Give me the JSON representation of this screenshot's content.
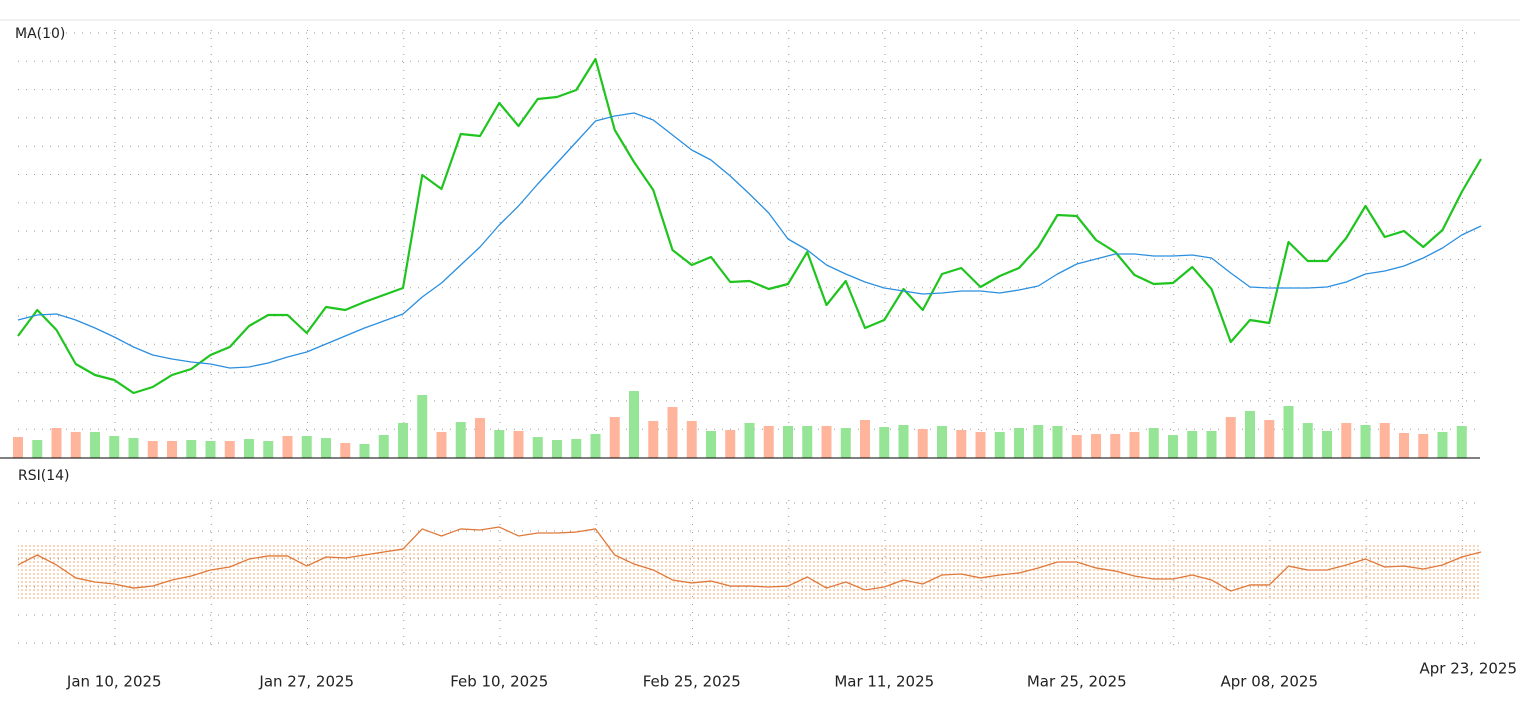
{
  "chart_data": [
    {
      "type": "line",
      "title": "MA(10)",
      "ylim": [
        0,
        440
      ],
      "series": [
        {
          "color": "#1fc41f",
          "values": [
            122,
            148,
            128,
            94,
            83,
            78,
            65,
            71,
            83,
            89,
            103,
            111,
            132,
            143,
            143,
            125,
            151,
            148,
            156,
            163,
            170,
            283,
            269,
            324,
            322,
            355,
            332,
            359,
            361,
            368,
            399,
            328,
            296,
            268,
            208,
            193,
            201,
            176,
            177,
            169,
            174,
            206,
            153,
            177,
            130,
            138,
            169,
            148,
            184,
            190,
            171,
            182,
            190,
            211,
            243,
            242,
            218,
            206,
            183,
            174,
            175,
            191,
            169,
            116,
            138,
            135,
            216,
            197,
            197,
            220,
            252,
            221,
            227,
            211,
            228,
            266,
            299
          ]
        },
        {
          "color": "#2b8fe0",
          "values": [
            138,
            143,
            144,
            138,
            130,
            121,
            111,
            103,
            99,
            96,
            94,
            90,
            91,
            95,
            101,
            106,
            114,
            122,
            130,
            137,
            144,
            161,
            175,
            193,
            211,
            233,
            252,
            274,
            295,
            316,
            337,
            342,
            345,
            338,
            323,
            308,
            298,
            282,
            264,
            245,
            219,
            208,
            193,
            184,
            176,
            170,
            167,
            164,
            165,
            167,
            167,
            165,
            168,
            172,
            184,
            194,
            199,
            204,
            204,
            202,
            202,
            203,
            200,
            185,
            171,
            170,
            170,
            170,
            171,
            176,
            184,
            187,
            192,
            200,
            210,
            223,
            232
          ]
        }
      ]
    },
    {
      "type": "bar",
      "ylim": [
        0,
        440
      ],
      "values": [
        21,
        18,
        30,
        26,
        26,
        22,
        20,
        17,
        17,
        18,
        17,
        17,
        19,
        17,
        22,
        22,
        20,
        15,
        14,
        23,
        35,
        63,
        26,
        36,
        40,
        28,
        27,
        21,
        18,
        19,
        24,
        41,
        67,
        37,
        51,
        37,
        27,
        28,
        35,
        32,
        32,
        32,
        32,
        30,
        38,
        31,
        33,
        29,
        32,
        28,
        26,
        26,
        30,
        33,
        32,
        23,
        24,
        24,
        26,
        30,
        23,
        27,
        27,
        41,
        47,
        38,
        52,
        35,
        27,
        35,
        33,
        35,
        25,
        24,
        26,
        32,
        null
      ],
      "colors": [
        "#ffb59b",
        "#96e596",
        "#ffb59b",
        "#ffb59b",
        "#96e596",
        "#96e596",
        "#96e596",
        "#ffb59b",
        "#ffb59b",
        "#96e596",
        "#96e596",
        "#ffb59b",
        "#96e596",
        "#96e596",
        "#ffb59b",
        "#96e596",
        "#96e596",
        "#ffb59b",
        "#96e596",
        "#96e596",
        "#96e596",
        "#96e596",
        "#ffb59b",
        "#96e596",
        "#ffb59b",
        "#96e596",
        "#ffb59b",
        "#96e596",
        "#96e596",
        "#96e596",
        "#96e596",
        "#ffb59b",
        "#96e596",
        "#ffb59b",
        "#ffb59b",
        "#ffb59b",
        "#96e596",
        "#ffb59b",
        "#96e596",
        "#ffb59b",
        "#96e596",
        "#96e596",
        "#ffb59b",
        "#96e596",
        "#ffb59b",
        "#96e596",
        "#96e596",
        "#ffb59b",
        "#96e596",
        "#ffb59b",
        "#ffb59b",
        "#96e596",
        "#96e596",
        "#96e596",
        "#96e596",
        "#ffb59b",
        "#ffb59b",
        "#ffb59b",
        "#ffb59b",
        "#96e596",
        "#96e596",
        "#96e596",
        "#96e596",
        "#ffb59b",
        "#96e596",
        "#ffb59b",
        "#96e596",
        "#96e596",
        "#96e596",
        "#ffb59b",
        "#96e596",
        "#ffb59b",
        "#ffb59b",
        "#ffb59b",
        "#96e596",
        "#96e596",
        null
      ]
    },
    {
      "type": "line",
      "title": "RSI(14)",
      "ylim": [
        0,
        100
      ],
      "band": [
        30,
        70
      ],
      "band_color": "#f4a46a",
      "categories": [
        null,
        null,
        null,
        null,
        null,
        "Jan 10, 2025",
        null,
        null,
        null,
        null,
        null,
        null,
        null,
        null,
        null,
        "Jan 27, 2025",
        null,
        null,
        null,
        null,
        null,
        null,
        null,
        null,
        null,
        "Feb 10, 2025",
        null,
        null,
        null,
        null,
        null,
        null,
        null,
        null,
        null,
        "Feb 25, 2025",
        null,
        null,
        null,
        null,
        null,
        null,
        null,
        null,
        null,
        "Mar 11, 2025",
        null,
        null,
        null,
        null,
        null,
        null,
        null,
        null,
        null,
        "Mar 25, 2025",
        null,
        null,
        null,
        null,
        null,
        null,
        null,
        null,
        null,
        "Apr 08, 2025",
        null,
        null,
        null,
        null,
        null,
        null,
        null,
        null,
        null,
        null,
        "Apr 23, 2025"
      ],
      "series": [
        {
          "color": "#e0793a",
          "values": [
            55.2,
            62.6,
            55.2,
            45.6,
            42.6,
            41.1,
            38.1,
            39.6,
            44.1,
            47.0,
            51.5,
            53.7,
            59.6,
            61.9,
            61.9,
            54.4,
            61.1,
            60.4,
            62.6,
            64.8,
            67.0,
            81.9,
            76.7,
            81.9,
            81.1,
            83.3,
            76.7,
            78.9,
            78.9,
            79.6,
            81.9,
            62.6,
            55.9,
            51.5,
            44.1,
            41.9,
            43.3,
            39.6,
            39.6,
            38.9,
            39.6,
            46.3,
            38.1,
            42.6,
            36.7,
            38.9,
            44.1,
            41.1,
            47.8,
            48.5,
            45.6,
            47.8,
            49.3,
            53.0,
            57.4,
            57.4,
            53.0,
            50.7,
            47.0,
            44.8,
            44.8,
            47.8,
            44.1,
            35.9,
            40.4,
            40.4,
            54.4,
            51.5,
            51.5,
            55.2,
            59.6,
            53.7,
            54.4,
            52.2,
            55.2,
            61.1,
            64.8
          ]
        }
      ]
    }
  ]
}
